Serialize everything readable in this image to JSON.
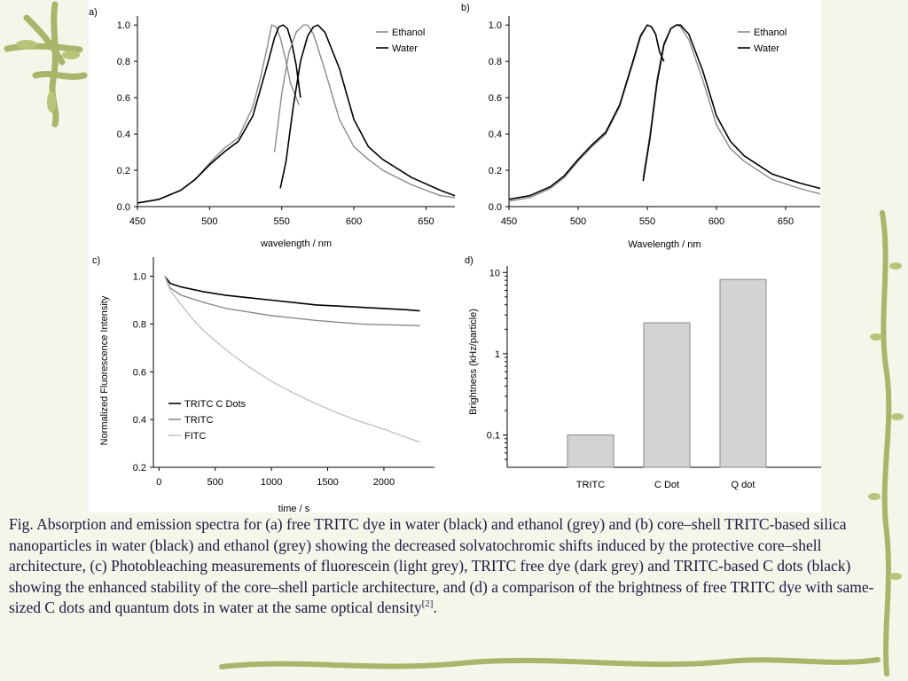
{
  "caption": {
    "text": "Fig. Absorption and emission spectra for (a) free TRITC dye in water (black) and ethanol (grey) and (b) core–shell TRITC-based silica nanoparticles in water (black) and ethanol (grey) showing the decreased solvatochromic shifts induced by the  protective core–shell architecture, (c) Photobleaching measurements of fluorescein (light grey), TRITC free dye (dark grey) and TRITC-based C dots (black) showing the enhanced stability of the core–shell particle architecture, and (d) a comparison of the brightness of free TRITC dye with same-sized C dots and quantum dots in water at the same optical density",
    "ref": "[2]",
    "end": "."
  },
  "colors": {
    "black_series": "#000000",
    "grey_series": "#8a8a8a",
    "light_series": "#c4c4c4",
    "bar_fill": "#d3d3d3"
  },
  "chart_data": [
    {
      "panel": "a)",
      "type": "line",
      "xlabel": "wavelength / nm",
      "ylabel": "",
      "xlim": [
        450,
        670
      ],
      "ylim": [
        0,
        1.05
      ],
      "xticks": [
        450,
        500,
        550,
        600,
        650
      ],
      "yticks": [
        "0.0",
        "0.2",
        "0.4",
        "0.6",
        "0.8",
        "1.0"
      ],
      "legend": "top-right",
      "series": [
        {
          "name": "Ethanol",
          "color": "grey",
          "label_shown": true,
          "x": [
            450,
            465,
            480,
            490,
            500,
            510,
            520,
            530,
            535,
            540,
            543,
            546,
            549,
            553,
            556,
            559,
            562
          ],
          "y": [
            0.02,
            0.04,
            0.09,
            0.15,
            0.24,
            0.32,
            0.38,
            0.55,
            0.7,
            0.88,
            1.0,
            0.99,
            0.93,
            0.8,
            0.68,
            0.62,
            0.56
          ]
        },
        {
          "name": "Water",
          "color": "black",
          "label_shown": true,
          "x": [
            450,
            465,
            480,
            490,
            500,
            510,
            520,
            530,
            540,
            545,
            548,
            551,
            554,
            557,
            560,
            563
          ],
          "y": [
            0.02,
            0.04,
            0.09,
            0.15,
            0.23,
            0.3,
            0.36,
            0.5,
            0.78,
            0.93,
            0.99,
            1.0,
            0.98,
            0.9,
            0.78,
            0.6
          ]
        },
        {
          "name": "",
          "color": "grey",
          "x": [
            545,
            550,
            555,
            560,
            565,
            568,
            572,
            580,
            590,
            600,
            610,
            620,
            640,
            660,
            670
          ],
          "y": [
            0.3,
            0.62,
            0.85,
            0.96,
            1.0,
            1.0,
            0.95,
            0.75,
            0.48,
            0.33,
            0.26,
            0.2,
            0.12,
            0.06,
            0.05
          ]
        },
        {
          "name": "",
          "color": "black",
          "x": [
            549,
            553,
            558,
            563,
            568,
            572,
            575,
            580,
            590,
            600,
            610,
            620,
            640,
            660,
            670
          ],
          "y": [
            0.1,
            0.25,
            0.55,
            0.8,
            0.94,
            0.99,
            1.0,
            0.96,
            0.76,
            0.48,
            0.33,
            0.26,
            0.16,
            0.09,
            0.06
          ]
        }
      ]
    },
    {
      "panel": "b)",
      "type": "line",
      "xlabel": "Wavelength / nm",
      "ylabel": "",
      "xlim": [
        450,
        675
      ],
      "ylim": [
        0,
        1.05
      ],
      "xticks": [
        450,
        500,
        550,
        600,
        650
      ],
      "yticks": [
        "0.0",
        "0.2",
        "0.4",
        "0.6",
        "0.8",
        "1.0"
      ],
      "legend": "top-right",
      "series": [
        {
          "name": "Ethanol",
          "color": "grey",
          "label_shown": true,
          "x": [
            450,
            465,
            480,
            490,
            500,
            510,
            520,
            530,
            540,
            545,
            550,
            553,
            556,
            559,
            562
          ],
          "y": [
            0.03,
            0.05,
            0.1,
            0.16,
            0.25,
            0.33,
            0.4,
            0.55,
            0.8,
            0.93,
            1.0,
            0.99,
            0.95,
            0.85,
            0.8
          ]
        },
        {
          "name": "Water",
          "color": "black",
          "label_shown": true,
          "x": [
            450,
            465,
            480,
            490,
            500,
            510,
            520,
            530,
            540,
            545,
            550,
            553,
            556,
            559,
            562
          ],
          "y": [
            0.04,
            0.06,
            0.11,
            0.17,
            0.26,
            0.34,
            0.41,
            0.56,
            0.81,
            0.94,
            1.0,
            0.99,
            0.95,
            0.85,
            0.8
          ]
        },
        {
          "name": "",
          "color": "grey",
          "x": [
            547,
            552,
            557,
            562,
            567,
            571,
            574,
            580,
            590,
            600,
            610,
            620,
            640,
            660,
            675
          ],
          "y": [
            0.16,
            0.4,
            0.7,
            0.9,
            0.98,
            1.0,
            0.99,
            0.92,
            0.7,
            0.45,
            0.32,
            0.25,
            0.15,
            0.1,
            0.07
          ]
        },
        {
          "name": "",
          "color": "black",
          "x": [
            547,
            552,
            557,
            562,
            567,
            571,
            574,
            580,
            590,
            600,
            610,
            620,
            640,
            660,
            675
          ],
          "y": [
            0.14,
            0.38,
            0.68,
            0.89,
            0.98,
            1.0,
            1.0,
            0.95,
            0.75,
            0.5,
            0.36,
            0.28,
            0.18,
            0.13,
            0.1
          ]
        }
      ]
    },
    {
      "panel": "c)",
      "type": "line",
      "xlabel": "time / s",
      "ylabel": "Normalized Fluorescence Intensity",
      "xlim": [
        -50,
        2450
      ],
      "ylim": [
        0.2,
        1.08
      ],
      "xticks": [
        0,
        500,
        1000,
        1500,
        2000
      ],
      "yticks": [
        "0.2",
        "0.4",
        "0.6",
        "0.8",
        "1.0"
      ],
      "legend": "bottom-left",
      "series": [
        {
          "name": "TRITC C Dots",
          "color": "black",
          "x": [
            50,
            100,
            200,
            400,
            600,
            800,
            1000,
            1200,
            1400,
            1600,
            1800,
            2000,
            2200,
            2320
          ],
          "y": [
            1.0,
            0.97,
            0.955,
            0.935,
            0.92,
            0.91,
            0.9,
            0.89,
            0.88,
            0.875,
            0.87,
            0.865,
            0.86,
            0.855
          ]
        },
        {
          "name": "TRITC",
          "color": "grey",
          "x": [
            50,
            100,
            200,
            400,
            600,
            800,
            1000,
            1200,
            1400,
            1600,
            1800,
            2000,
            2200,
            2320
          ],
          "y": [
            1.0,
            0.95,
            0.92,
            0.89,
            0.865,
            0.85,
            0.835,
            0.825,
            0.815,
            0.807,
            0.8,
            0.797,
            0.795,
            0.793
          ]
        },
        {
          "name": "FITC",
          "color": "light",
          "x": [
            50,
            100,
            200,
            300,
            400,
            500,
            600,
            800,
            1000,
            1200,
            1400,
            1600,
            1800,
            2000,
            2200,
            2320
          ],
          "y": [
            1.0,
            0.94,
            0.88,
            0.82,
            0.77,
            0.73,
            0.69,
            0.62,
            0.56,
            0.51,
            0.465,
            0.425,
            0.39,
            0.36,
            0.325,
            0.305
          ]
        }
      ]
    },
    {
      "panel": "d)",
      "type": "bar",
      "xlabel": "",
      "ylabel": "Brightness (kHz/particle)",
      "yscale": "log",
      "ylim": [
        0.04,
        12
      ],
      "yticks": [
        "0.1",
        "1",
        "10"
      ],
      "categories": [
        "TRITC",
        "C Dot",
        "Q dot"
      ],
      "values": [
        0.1,
        2.4,
        8.2
      ]
    }
  ]
}
